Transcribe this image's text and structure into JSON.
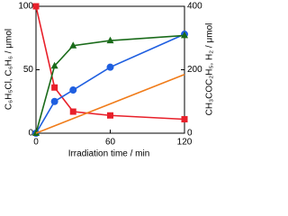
{
  "chart_data": {
    "type": "line",
    "xlabel": "Irradiation time / min",
    "ylabel": "C₆H₅Cl, C₆H₆ / μmol",
    "y2label": "CH₃COC₂H₅, H₂ / μmol",
    "xlim": [
      0,
      120
    ],
    "xticks": [
      0,
      60,
      120
    ],
    "ylim": [
      0,
      100
    ],
    "yticks": [
      0,
      50,
      100
    ],
    "y2lim": [
      0,
      400
    ],
    "y2ticks": [
      0,
      200,
      400
    ],
    "series": [
      {
        "color": "#e8202a",
        "marker": "square",
        "x": [
          0,
          15,
          30,
          60,
          120
        ],
        "values": [
          100,
          36,
          17,
          14,
          11
        ]
      },
      {
        "color": "#1f5fe0",
        "marker": "circle",
        "x": [
          0,
          15,
          30,
          60,
          120
        ],
        "values": [
          0,
          25,
          34,
          52,
          78
        ]
      },
      {
        "color": "#1a6b1a",
        "marker": "triangle",
        "axis": "y2",
        "x": [
          0,
          15,
          30,
          60,
          120
        ],
        "values": [
          0,
          212,
          276,
          292,
          308
        ]
      },
      {
        "color": "#f07c1a",
        "marker": "none",
        "axis": "y2",
        "x": [
          0,
          120
        ],
        "values": [
          0,
          185
        ]
      }
    ]
  }
}
